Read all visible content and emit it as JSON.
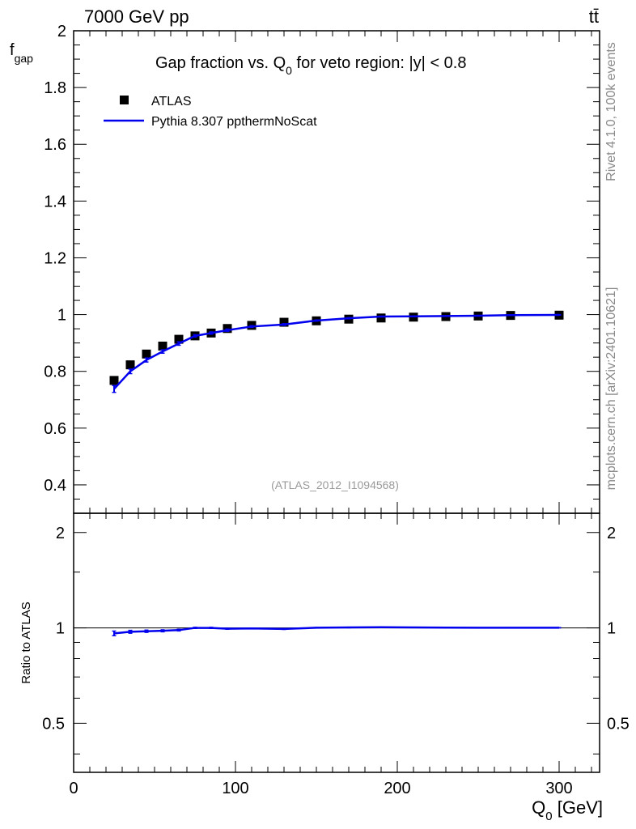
{
  "header": {
    "collision": "7000 GeV pp",
    "process": "tt̄"
  },
  "side_labels": {
    "rivet": "Rivet 4.1.0,  100k events",
    "mcplots": "mcplots.cern.ch [arXiv:2401.10621]"
  },
  "colors": {
    "mc": "#0000ee",
    "data": "#000000",
    "watermark": "#9a9a9a"
  },
  "chart_data": [
    {
      "type": "scatter",
      "panel": "main",
      "title_parts": [
        "Gap fraction vs. Q",
        "0",
        " for veto region: |y| < 0.8"
      ],
      "ylabel": "f",
      "ylabel_sub": "gap",
      "ylim": [
        0.3,
        2.0
      ],
      "xlim": [
        0,
        325
      ],
      "yticks": [
        0.4,
        0.6,
        0.8,
        1,
        1.2,
        1.4,
        1.6,
        1.8,
        2
      ],
      "ytick_labels": [
        "0.4",
        "0.6",
        "0.8",
        "1",
        "1.2",
        "1.4",
        "1.6",
        "1.8",
        "2"
      ],
      "watermark": "(ATLAS_2012_I1094568)",
      "legend": {
        "position": "top-left",
        "entries": [
          "ATLAS",
          "Pythia 8.307 ppthermNoScat"
        ]
      },
      "x": [
        25,
        35,
        45,
        55,
        65,
        75,
        85,
        95,
        110,
        130,
        150,
        170,
        190,
        210,
        230,
        250,
        270,
        300
      ],
      "series": [
        {
          "name": "ATLAS",
          "style": "markers",
          "values": [
            0.768,
            0.823,
            0.861,
            0.889,
            0.913,
            0.925,
            0.935,
            0.951,
            0.962,
            0.973,
            0.978,
            0.984,
            0.988,
            0.991,
            0.993,
            0.995,
            0.997,
            0.998
          ]
        },
        {
          "name": "Pythia 8.307 ppthermNoScat",
          "style": "line",
          "values": [
            0.738,
            0.8,
            0.84,
            0.87,
            0.898,
            0.925,
            0.935,
            0.945,
            0.958,
            0.965,
            0.979,
            0.987,
            0.993,
            0.994,
            0.995,
            0.996,
            0.998,
            0.999
          ],
          "errors": [
            0.012,
            0.008,
            0.007,
            0.006,
            0.006,
            0.004,
            0.004,
            0.004,
            0.003,
            0.003,
            0.002,
            0.002,
            0.001,
            0.001,
            0.001,
            0.001,
            0.001,
            0.001
          ]
        }
      ]
    },
    {
      "type": "line",
      "panel": "ratio",
      "ylabel": "Ratio to ATLAS",
      "xlabel": "Q",
      "xlabel_sub": "0",
      "xlabel_unit": " [GeV]",
      "ylim": [
        0.35,
        2.3
      ],
      "yscale": "log",
      "xlim": [
        0,
        325
      ],
      "xticks": [
        0,
        100,
        200,
        300
      ],
      "xtick_labels": [
        "0",
        "100",
        "200",
        "300"
      ],
      "yticks": [
        0.5,
        1,
        2
      ],
      "ytick_labels": [
        "0.5",
        "1",
        "2"
      ],
      "reference": 1,
      "x": [
        25,
        35,
        45,
        55,
        65,
        75,
        85,
        95,
        110,
        130,
        150,
        170,
        190,
        210,
        230,
        250,
        270,
        300
      ],
      "series": [
        {
          "name": "Pythia 8.307 ppthermNoScat / ATLAS",
          "values": [
            0.961,
            0.972,
            0.976,
            0.979,
            0.984,
            1.0,
            1.0,
            0.994,
            0.996,
            0.992,
            1.001,
            1.003,
            1.005,
            1.003,
            1.002,
            1.001,
            1.001,
            1.001
          ],
          "errors": [
            0.016,
            0.01,
            0.008,
            0.007,
            0.006,
            0.004,
            0.004,
            0.004,
            0.003,
            0.003,
            0.002,
            0.002,
            0.001,
            0.001,
            0.001,
            0.001,
            0.001,
            0.001
          ]
        }
      ]
    }
  ]
}
